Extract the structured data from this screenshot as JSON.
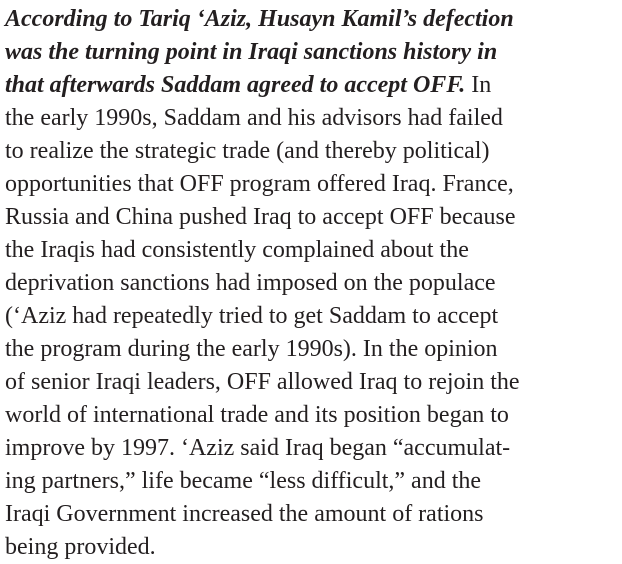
{
  "paragraph": {
    "lead": [
      "According to Tariq ‘Aziz, Husayn Kamil’s defection",
      "was the turning point in Iraqi sanctions history in",
      "that afterwards Saddam agreed to accept OFF."
    ],
    "body": [
      "In",
      "the early 1990s, Saddam and his advisors had failed",
      "to realize the strategic trade (and thereby political)",
      "opportunities that OFF program offered Iraq. France,",
      "Russia and China pushed Iraq to accept OFF because",
      "the Iraqis had consistently complained about the",
      "deprivation sanctions had imposed on the populace",
      "(‘Aziz had repeatedly tried to get Saddam to accept",
      "the program during the early 1990s). In the opinion",
      "of senior Iraqi leaders, OFF allowed Iraq to rejoin the",
      "world of international trade and its position began to",
      "improve by 1997. ‘Aziz said Iraq began “accumulat-",
      "ing partners,” life became “less difficult,” and the",
      "Iraqi Government increased the amount of rations",
      "being provided."
    ]
  }
}
